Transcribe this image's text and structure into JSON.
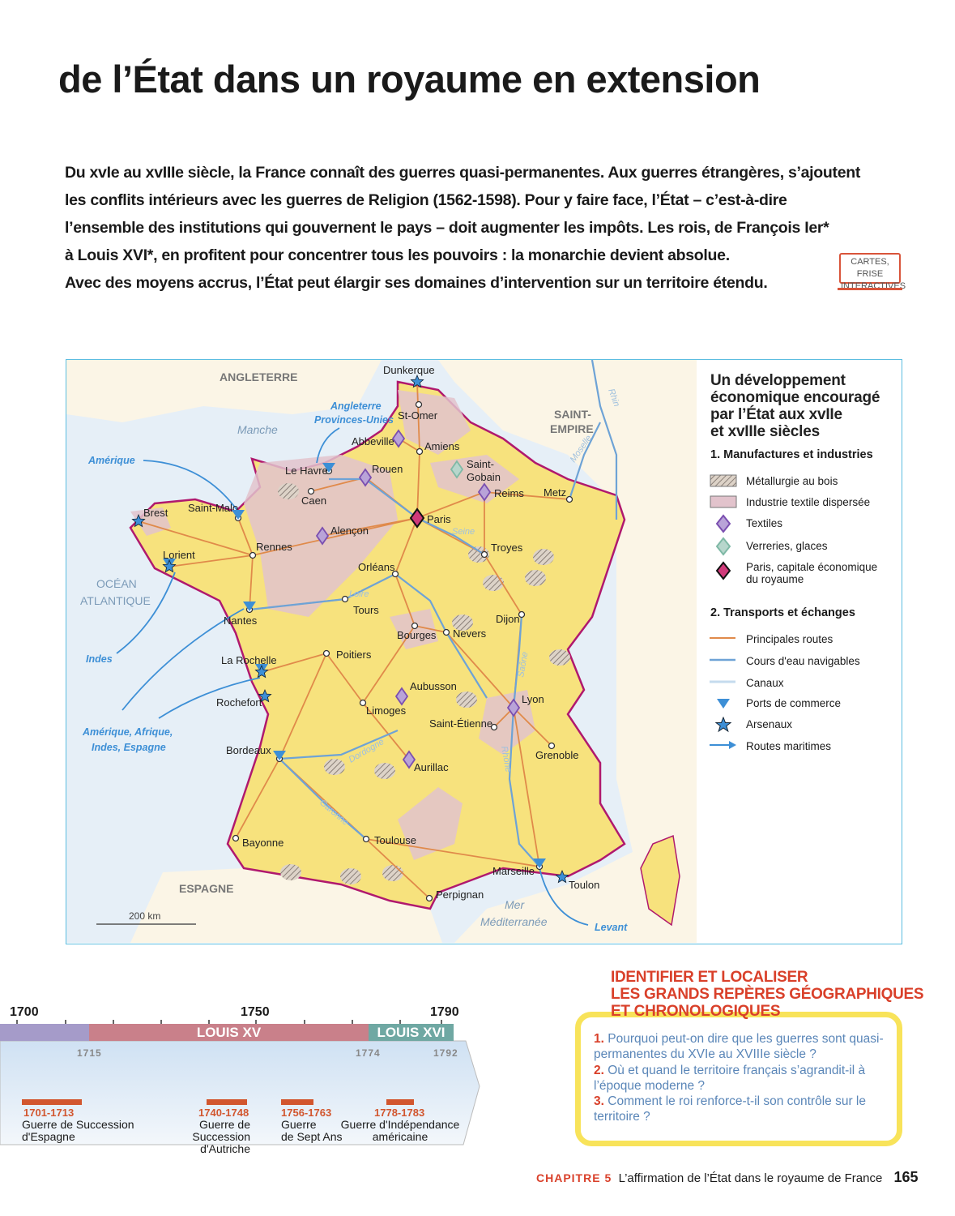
{
  "page_title": "de l’État dans un royaume en extension",
  "intro_lines": [
    "Du xvIe au xvIIIe siècle, la France connaît des guerres quasi-permanentes. Aux guerres étrangères, s’ajoutent",
    "les conflits intérieurs avec les guerres de Religion (1562-1598). Pour y faire face, l’État – c’est-à-dire",
    "l’ensemble des institutions qui gouvernent le pays – doit augmenter les impôts. Les rois, de François Ier*",
    "à Louis XVI*, en profitent pour concentrer tous les pouvoirs : la monarchie devient absolue.",
    "Avec des moyens accrus, l’État peut élargir ses domaines d’intervention sur un territoire étendu."
  ],
  "cartes_button": {
    "line1": "CARTES, FRISE",
    "line2": "INTERACTIVES"
  },
  "map": {
    "regions": {
      "angleterre": "ANGLETERRE",
      "manche": "Manche",
      "saint_empire_1": "SAINT-",
      "saint_empire_2": "EMPIRE",
      "ocean_1": "OCÉAN",
      "ocean_2": "ATLANTIQUE",
      "espagne": "ESPAGNE",
      "mer_1": "Mer",
      "mer_2": "Méditerranée"
    },
    "rivers": [
      "Seine",
      "Loire",
      "Saône",
      "Rhône",
      "Dordogne",
      "Garonne",
      "Rhin",
      "Moselle"
    ],
    "sea_routes": [
      "Amérique",
      "Angleterre",
      "Provinces-Unies",
      "Indes",
      "Amérique, Afrique,",
      "Indes, Espagne",
      "Levant"
    ],
    "cities": [
      "Dunkerque",
      "St-Omer",
      "Abbeville",
      "Amiens",
      "Rouen",
      "Le Havre",
      "Caen",
      "Saint-",
      "Gobain",
      "Reims",
      "Metz",
      "Paris",
      "Brest",
      "Saint-Malo",
      "Rennes",
      "Alençon",
      "Lorient",
      "Orléans",
      "Troyes",
      "Tours",
      "Nantes",
      "Dijon",
      "Bourges",
      "Nevers",
      "Poitiers",
      "La Rochelle",
      "Rochefort",
      "Aubusson",
      "Limoges",
      "Lyon",
      "Saint-Étienne",
      "Grenoble",
      "Bordeaux",
      "Aurillac",
      "Bayonne",
      "Toulouse",
      "Marseille",
      "Toulon",
      "Perpignan"
    ],
    "scale": "200 km",
    "colors": {
      "france": "#f7e27d",
      "textile": "#e2c3cc",
      "sea": "#e6eff7",
      "border": "#b0196e",
      "road": "#e08a4a",
      "river": "#6ea3d6",
      "port": "#3d8fd6"
    }
  },
  "legend": {
    "title_lines": [
      "Un développement",
      "économique encouragé",
      "par l’État aux xvIIe",
      "et  xvIIIe siècles"
    ],
    "section1": "1. Manufactures et industries",
    "items1": [
      "Métallurgie au bois",
      "Industrie textile dispersée",
      "Textiles",
      "Verreries, glaces",
      "Paris, capitale économique",
      "du royaume"
    ],
    "section2": "2. Transports et échanges",
    "items2": [
      "Principales routes",
      "Cours d'eau navigables",
      "Canaux",
      "Ports de commerce",
      "Arsenaux",
      "Routes maritimes"
    ]
  },
  "timeline": {
    "years": [
      "1700",
      "1750",
      "1790"
    ],
    "sub_years": [
      "1715",
      "1774",
      "1792"
    ],
    "reigns": [
      "LOUIS XV",
      "LOUIS XVI"
    ],
    "colors": {
      "louis_xiv": "#a59bc9",
      "louis_xv": "#c9808a",
      "louis_xvi": "#6fa8a3",
      "war": "#d2562e"
    },
    "wars": [
      {
        "dates": "1701-1713",
        "name1": "Guerre de Succession",
        "name2": "d'Espagne"
      },
      {
        "dates": "1740-1748",
        "name1": "Guerre de Succession",
        "name2": "d'Autriche"
      },
      {
        "dates": "1756-1763",
        "name1": "Guerre",
        "name2": "de Sept Ans"
      },
      {
        "dates": "1778-1783",
        "name1": "Guerre d'Indépendance",
        "name2": "américaine"
      }
    ]
  },
  "questions": {
    "heading": [
      "IDENTIFIER ET LOCALISER",
      "LES GRANDS REPÈRES GÉOGRAPHIQUES",
      "ET CHRONOLOGIQUES"
    ],
    "items": [
      {
        "num": "1.",
        "text": "Pourquoi peut-on dire que les guerres sont quasi-permanentes du XVIe au XVIIIe siècle ?"
      },
      {
        "num": "2.",
        "text": "Où et quand le territoire français s’agrandit-il à l’époque moderne ?"
      },
      {
        "num": "3.",
        "text": "Comment le roi renforce-t-il son contrôle sur le territoire ?"
      }
    ]
  },
  "footer": {
    "chapter": "CHAPITRE 5",
    "title": "L’affirmation de l’État dans le royaume de France",
    "page": "165"
  }
}
